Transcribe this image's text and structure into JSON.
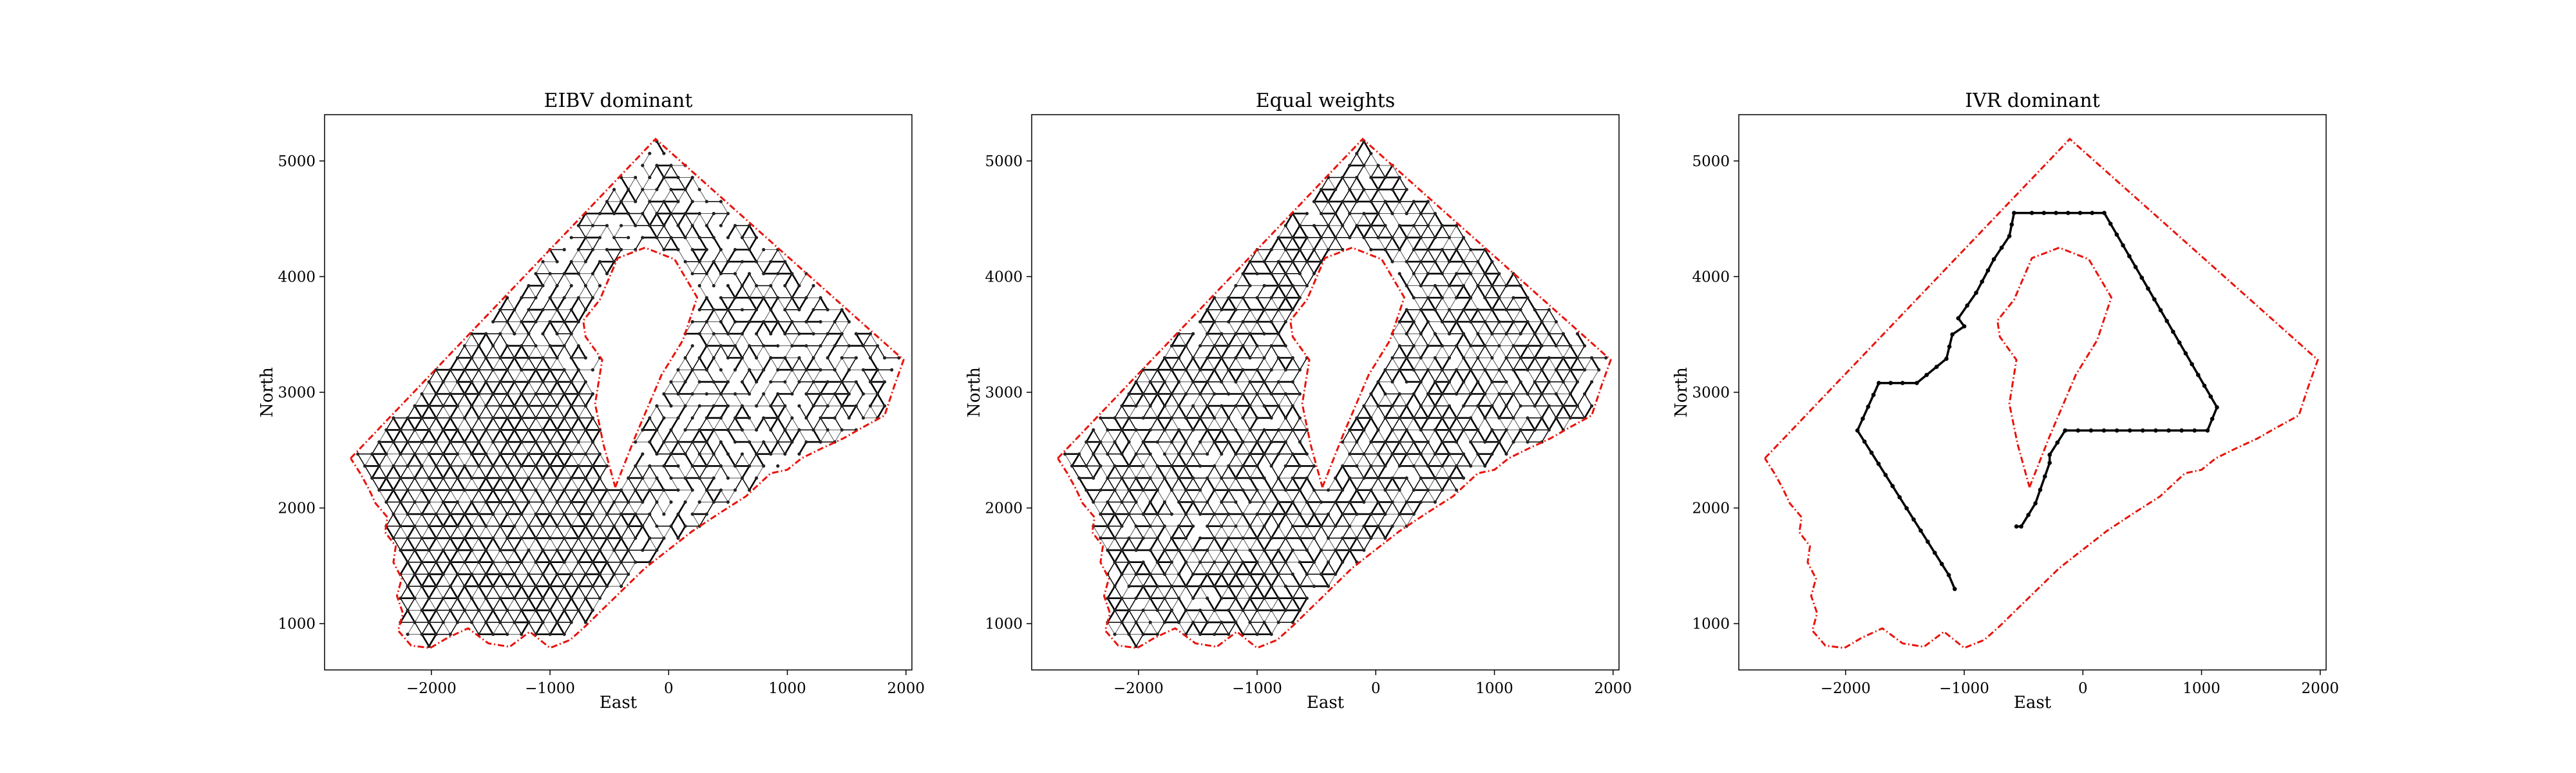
{
  "figure": {
    "background": "#ffffff",
    "boundary_color": "#e8140c",
    "path_color": "#000000",
    "grid_color": "#555555"
  },
  "chart_data": [
    {
      "type": "line",
      "title": "EIBV dominant",
      "xlabel": "East",
      "ylabel": "North",
      "xlim": [
        -2900,
        2050
      ],
      "ylim": [
        600,
        5400
      ],
      "xticks": [
        -2000,
        -1000,
        0,
        1000,
        2000
      ],
      "yticks": [
        1000,
        2000,
        3000,
        4000,
        5000
      ],
      "xtick_labels": [
        "−2000",
        "−1000",
        "0",
        "1000",
        "2000"
      ],
      "ytick_labels": [
        "1000",
        "2000",
        "3000",
        "4000",
        "5000"
      ],
      "grid": false,
      "trajectory_style": "dense grid coverage",
      "coverage_region": "lower-west and middle",
      "series": []
    },
    {
      "type": "line",
      "title": "Equal weights",
      "xlabel": "East",
      "ylabel": "North",
      "xlim": [
        -2900,
        2050
      ],
      "ylim": [
        600,
        5400
      ],
      "xticks": [
        -2000,
        -1000,
        0,
        1000,
        2000
      ],
      "yticks": [
        1000,
        2000,
        3000,
        4000,
        5000
      ],
      "xtick_labels": [
        "−2000",
        "−1000",
        "0",
        "1000",
        "2000"
      ],
      "ytick_labels": [
        "1000",
        "2000",
        "3000",
        "4000",
        "5000"
      ],
      "grid": false,
      "trajectory_style": "dense grid coverage",
      "coverage_region": "whole domain",
      "series": []
    },
    {
      "type": "line",
      "title": "IVR dominant",
      "xlabel": "East",
      "ylabel": "North",
      "xlim": [
        -2900,
        2050
      ],
      "ylim": [
        600,
        5400
      ],
      "xticks": [
        -2000,
        -1000,
        0,
        1000,
        2000
      ],
      "yticks": [
        1000,
        2000,
        3000,
        4000,
        5000
      ],
      "xtick_labels": [
        "−2000",
        "−1000",
        "0",
        "1000",
        "2000"
      ],
      "ytick_labels": [
        "1000",
        "2000",
        "3000",
        "4000",
        "5000"
      ],
      "grid": false,
      "trajectory_style": "single path",
      "series": [
        {
          "x": [
            -1080,
            -1130,
            -1900,
            -1720,
            -1520,
            -1400,
            -1150,
            -1100,
            -1000,
            -1050,
            -900,
            -750,
            -620,
            -580,
            -430,
            180,
            1130,
            1050,
            -150,
            -150,
            -280,
            -280,
            -400,
            -520,
            -560
          ],
          "y": [
            1300,
            1420,
            2670,
            3080,
            3080,
            3080,
            3290,
            3500,
            3570,
            3640,
            3860,
            4150,
            4350,
            4550,
            4550,
            4550,
            2870,
            2670,
            2670,
            2670,
            2460,
            2390,
            2040,
            1840,
            1840
          ]
        }
      ]
    }
  ]
}
